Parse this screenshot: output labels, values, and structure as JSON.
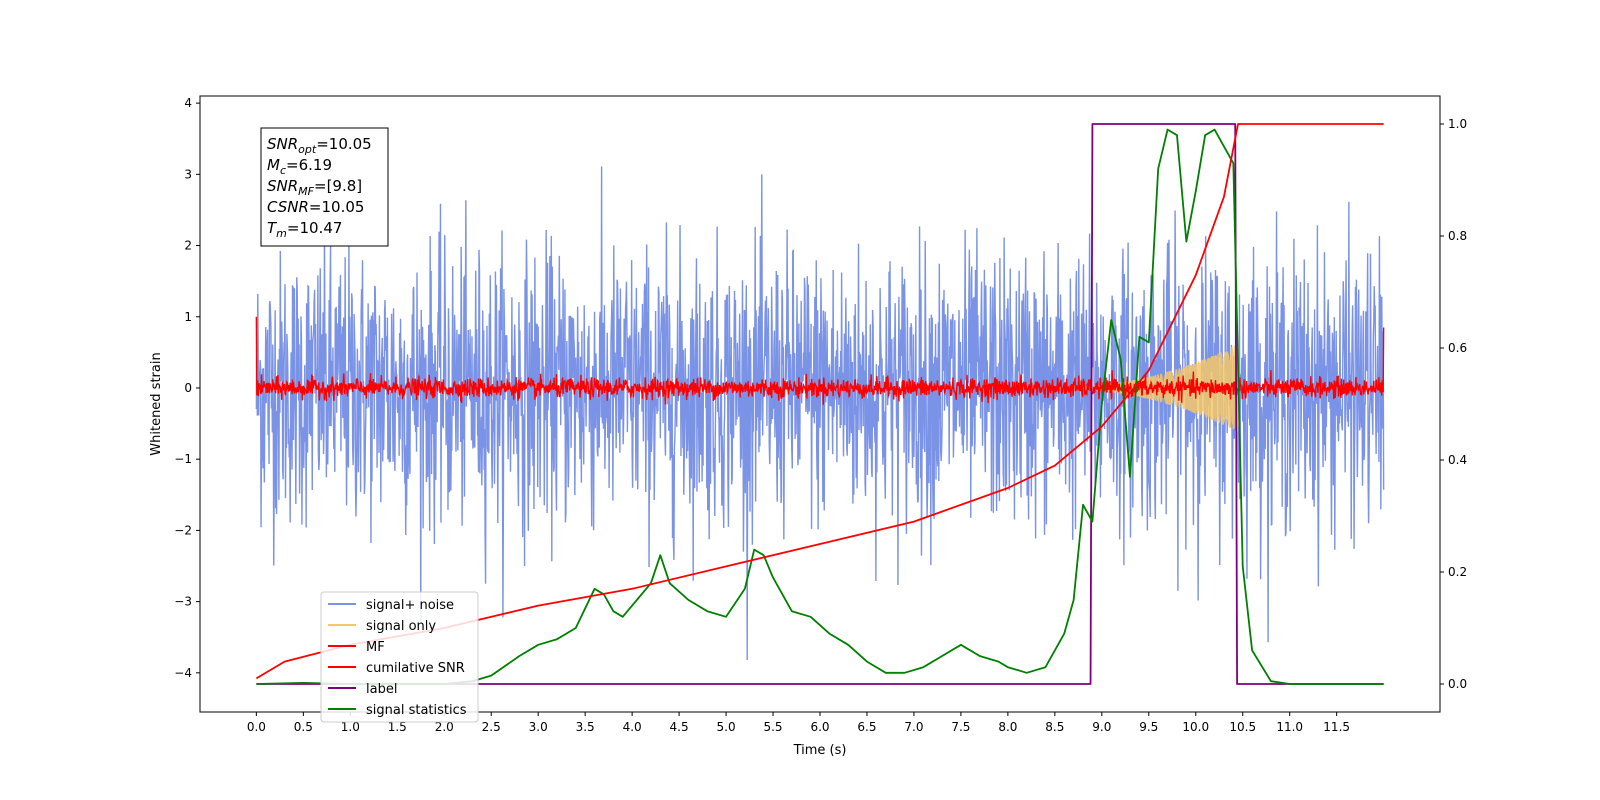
{
  "chart_data": {
    "type": "line",
    "xlabel": "Time (s)",
    "ylabel": "Whitened strain",
    "xlim": [
      -0.6,
      12.6
    ],
    "ylim": [
      -4.55,
      4.1
    ],
    "y2lim": [
      -0.05,
      1.05
    ],
    "x_ticks": [
      "0.0",
      "0.5",
      "1.0",
      "1.5",
      "2.0",
      "2.5",
      "3.0",
      "3.5",
      "4.0",
      "4.5",
      "5.0",
      "5.5",
      "6.0",
      "6.5",
      "7.0",
      "7.5",
      "8.0",
      "8.5",
      "9.0",
      "9.5",
      "10.0",
      "10.5",
      "11.0",
      "11.5"
    ],
    "y_ticks": [
      "4",
      "3",
      "2",
      "1",
      "0",
      "−1",
      "−2",
      "−3",
      "−4"
    ],
    "y2_ticks": [
      "1.0",
      "0.8",
      "0.6",
      "0.4",
      "0.2",
      "0.0"
    ],
    "legend_position": "lower-left",
    "stats_box": {
      "lines": [
        {
          "sym": "SNR",
          "sub": "opt",
          "val": "=10.05"
        },
        {
          "sym": "M",
          "sub": "c",
          "val": "=6.19"
        },
        {
          "sym": "SNR",
          "sub": "MF",
          "val": "=[9.8]"
        },
        {
          "sym": "CSNR",
          "sub": "",
          "val": "=10.05"
        },
        {
          "sym": "T",
          "sub": "m",
          "val": "=10.47"
        }
      ]
    },
    "series": [
      {
        "name": "signal+ noise",
        "color": "#7b93e6",
        "axis": "left",
        "kind": "noise",
        "x_range": [
          0.0,
          12.0
        ],
        "std": 0.95
      },
      {
        "name": "signal only",
        "color": "#f5c76a",
        "axis": "left",
        "kind": "chirp",
        "start": 8.4,
        "end": 10.45,
        "peak_amplitude": 0.62
      },
      {
        "name": "MF",
        "color": "#ff0000",
        "axis": "left",
        "kind": "noise",
        "x_range": [
          0.0,
          12.0
        ],
        "std": 0.07,
        "endpoints": [
          1.0,
          0.85
        ]
      },
      {
        "name": "cumilative SNR",
        "color": "#ff0000",
        "axis": "right",
        "x": [
          0.0,
          0.3,
          1.0,
          2.0,
          3.0,
          4.0,
          5.0,
          6.0,
          7.0,
          8.0,
          8.5,
          9.0,
          9.5,
          10.0,
          10.3,
          10.45,
          10.5,
          12.0
        ],
        "y": [
          0.01,
          0.04,
          0.07,
          0.1,
          0.14,
          0.17,
          0.21,
          0.25,
          0.29,
          0.35,
          0.39,
          0.46,
          0.56,
          0.73,
          0.87,
          1.0,
          1.0,
          1.0
        ]
      },
      {
        "name": "label",
        "color": "#7f007f",
        "axis": "right",
        "x": [
          0.0,
          8.88,
          8.9,
          10.42,
          10.44,
          12.0
        ],
        "y": [
          0.0,
          0.0,
          1.0,
          1.0,
          0.0,
          0.0
        ]
      },
      {
        "name": "signal statistics",
        "color": "#008000",
        "axis": "right",
        "x": [
          0.0,
          0.5,
          1.0,
          1.5,
          2.0,
          2.3,
          2.5,
          2.8,
          3.0,
          3.2,
          3.4,
          3.6,
          3.7,
          3.8,
          3.9,
          4.0,
          4.2,
          4.3,
          4.4,
          4.6,
          4.8,
          5.0,
          5.2,
          5.3,
          5.4,
          5.5,
          5.7,
          5.9,
          6.1,
          6.3,
          6.5,
          6.7,
          6.9,
          7.1,
          7.3,
          7.5,
          7.7,
          7.9,
          8.0,
          8.2,
          8.4,
          8.6,
          8.7,
          8.8,
          8.9,
          9.0,
          9.1,
          9.2,
          9.3,
          9.4,
          9.5,
          9.6,
          9.7,
          9.8,
          9.9,
          10.0,
          10.1,
          10.2,
          10.3,
          10.4,
          10.5,
          10.6,
          10.8,
          11.0,
          12.0
        ],
        "y": [
          0.0,
          0.002,
          0.0,
          0.0,
          0.0,
          0.005,
          0.015,
          0.05,
          0.07,
          0.08,
          0.1,
          0.17,
          0.16,
          0.13,
          0.12,
          0.14,
          0.18,
          0.23,
          0.18,
          0.15,
          0.13,
          0.12,
          0.17,
          0.24,
          0.23,
          0.19,
          0.13,
          0.12,
          0.09,
          0.07,
          0.04,
          0.02,
          0.02,
          0.03,
          0.05,
          0.07,
          0.05,
          0.04,
          0.03,
          0.02,
          0.03,
          0.09,
          0.15,
          0.32,
          0.29,
          0.5,
          0.65,
          0.58,
          0.37,
          0.62,
          0.61,
          0.92,
          0.99,
          0.98,
          0.79,
          0.88,
          0.98,
          0.99,
          0.96,
          0.93,
          0.21,
          0.06,
          0.005,
          0.0,
          0.0
        ]
      }
    ]
  }
}
